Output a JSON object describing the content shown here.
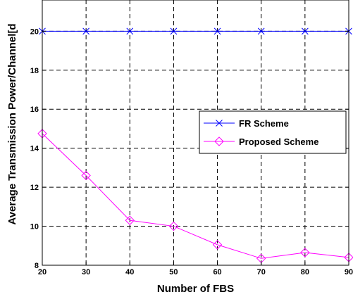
{
  "chart_data": {
    "type": "line",
    "title": "",
    "xlabel": "Number of FBS",
    "ylabel": "Average Transmission Power/Channel[d",
    "x": [
      20,
      30,
      40,
      50,
      60,
      70,
      80,
      90
    ],
    "xlim": [
      20,
      90
    ],
    "ylim": [
      8,
      21.6
    ],
    "xticks": [
      20,
      30,
      40,
      50,
      60,
      70,
      80,
      90
    ],
    "yticks": [
      8,
      10,
      12,
      14,
      16,
      18,
      20
    ],
    "grid": true,
    "grid_style": "dashed",
    "legend_position": "right",
    "series": [
      {
        "name": "FR Scheme",
        "values": [
          20,
          20,
          20,
          20,
          20,
          20,
          20,
          20
        ],
        "color": "#0000ff",
        "marker": "x"
      },
      {
        "name": "Proposed Scheme",
        "values": [
          14.75,
          12.6,
          10.3,
          10.0,
          9.05,
          8.35,
          8.65,
          8.4
        ],
        "color": "#ff00ff",
        "marker": "diamond"
      }
    ]
  }
}
